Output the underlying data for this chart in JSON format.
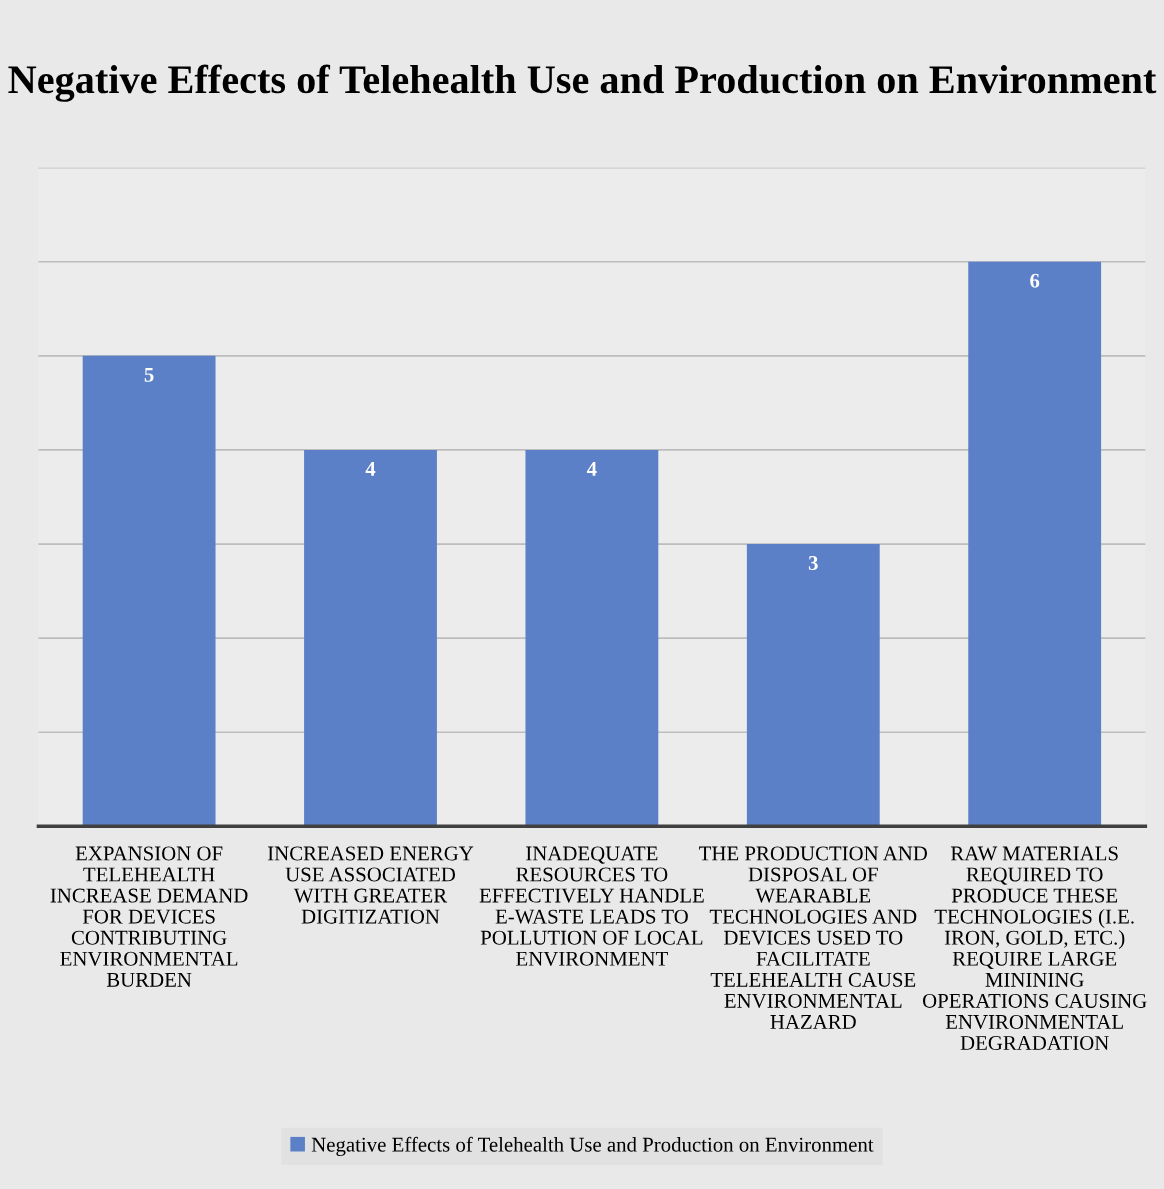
{
  "chart_data": {
    "type": "bar",
    "title": "Negative Effects of Telehealth Use and Production on Environment",
    "categories": [
      "EXPANSION OF TELEHEALTH INCREASE DEMAND FOR DEVICES CONTRIBUTING ENVIRONMENTAL BURDEN",
      "INCREASED ENERGY USE ASSOCIATED WITH GREATER DIGITIZATION",
      "INADEQUATE RESOURCES TO EFFECTIVELY HANDLE E-WASTE LEADS TO POLLUTION OF LOCAL ENVIRONMENT",
      "THE PRODUCTION AND DISPOSAL OF WEARABLE TECHNOLOGIES AND DEVICES USED TO FACILITATE TELEHEALTH CAUSE ENVIRONMENTAL HAZARD",
      "RAW MATERIALS REQUIRED TO PRODUCE THESE TECHNOLOGIES (I.E. IRON, GOLD, ETC.) REQUIRE LARGE MININING OPERATIONS CAUSING ENVIRONMENTAL DEGRADATION"
    ],
    "series": [
      {
        "name": "Negative Effects of Telehealth Use and Production on Environment",
        "color": "#5b80c8",
        "values": [
          5,
          4,
          4,
          3,
          6
        ]
      }
    ],
    "ylim": [
      0,
      7
    ],
    "yticks": [
      {
        "value": 0,
        "label": null
      },
      {
        "value": 1,
        "label": null
      },
      {
        "value": 2,
        "label": null
      },
      {
        "value": 3,
        "label": null
      },
      {
        "value": 4,
        "label": null
      },
      {
        "value": 5,
        "label": null
      },
      {
        "value": 6,
        "label": null
      },
      {
        "value": 7,
        "label": null
      }
    ],
    "grid": "y",
    "data_labels": true,
    "legend": "bottom",
    "tick_labels": "x"
  }
}
